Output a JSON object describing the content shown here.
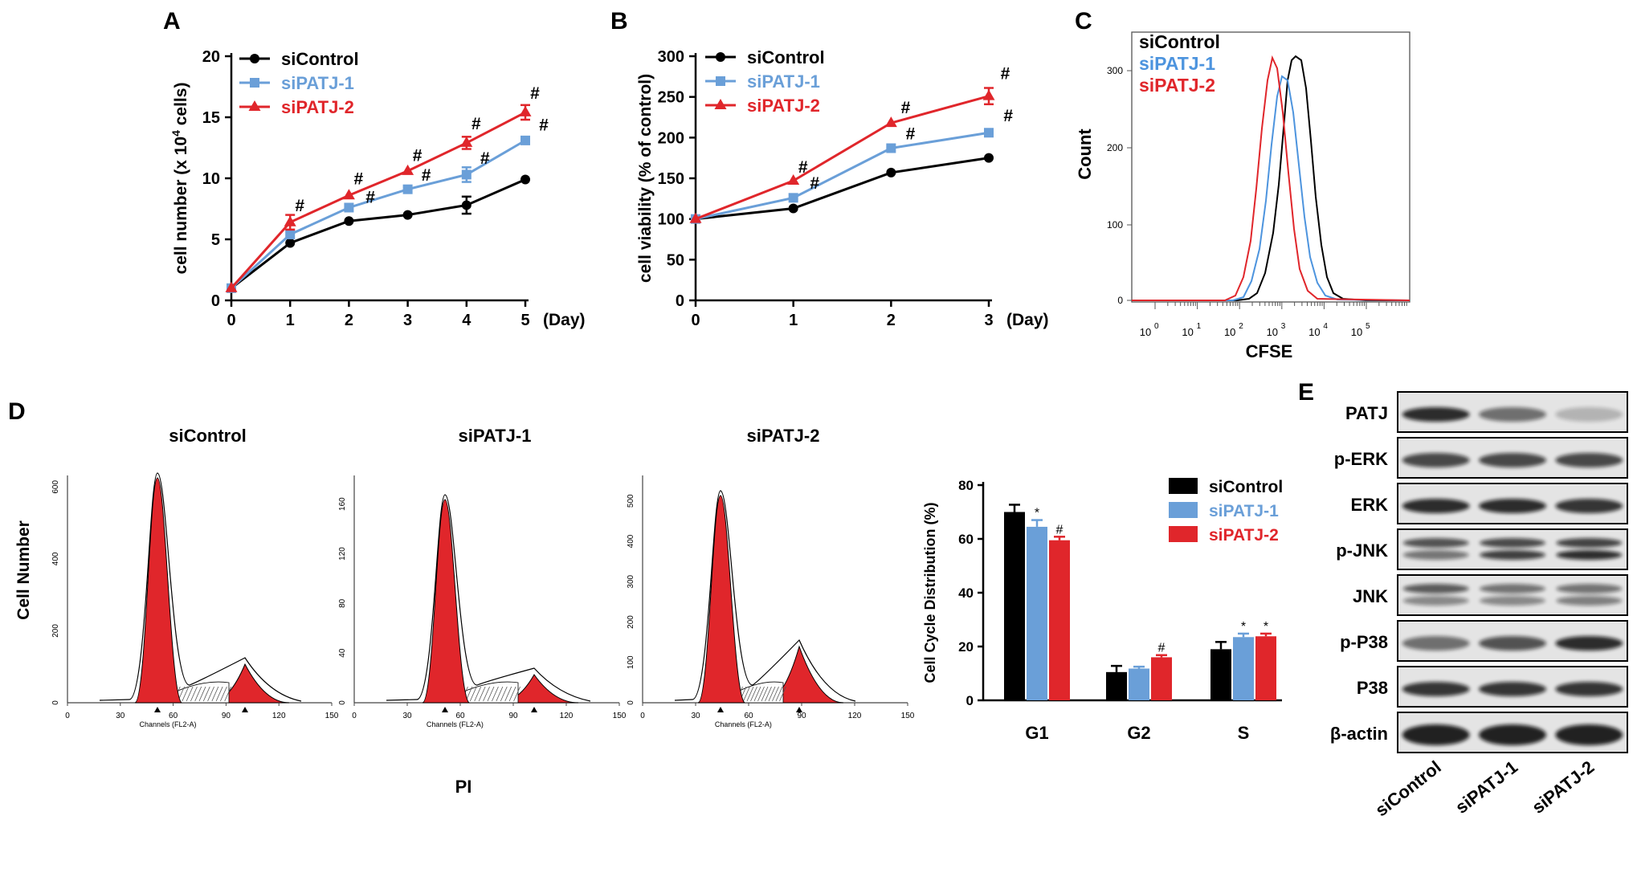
{
  "colors": {
    "siControl": "#000000",
    "siPATJ1": "#6a9fd8",
    "siPATJ2": "#e0262b"
  },
  "panels": {
    "A": "A",
    "B": "B",
    "C": "C",
    "D": "D",
    "E": "E"
  },
  "legend": {
    "s1": "siControl",
    "s2": "siPATJ-1",
    "s3": "siPATJ-2"
  },
  "chart_data": [
    {
      "id": "A",
      "type": "line",
      "ylabel": "cell number (x 10",
      "ylabel_sup": "4",
      "ylabel_end": " cells)",
      "xunit": "(Day)",
      "x": [
        0,
        1,
        2,
        3,
        4,
        5
      ],
      "xticks": [
        "0",
        "1",
        "2",
        "3",
        "4",
        "5"
      ],
      "yticks": [
        "0",
        "5",
        "10",
        "15",
        "20"
      ],
      "ylim": [
        0,
        20
      ],
      "series": [
        {
          "name": "siControl",
          "color": "#000000",
          "marker": "circle",
          "values": [
            1,
            4.7,
            6.5,
            7,
            7.8,
            9.9
          ],
          "err": [
            0,
            0,
            0,
            0,
            0.7,
            0
          ]
        },
        {
          "name": "siPATJ-1",
          "color": "#6a9fd8",
          "marker": "square",
          "values": [
            1,
            5.4,
            7.6,
            9.1,
            10.3,
            13.1
          ],
          "err": [
            0,
            0,
            0,
            0,
            0.6,
            0
          ]
        },
        {
          "name": "siPATJ-2",
          "color": "#e0262b",
          "marker": "triangle",
          "values": [
            1,
            6.4,
            8.6,
            10.6,
            12.9,
            15.4
          ],
          "err": [
            0,
            0.6,
            0,
            0,
            0.5,
            0.6
          ]
        }
      ],
      "annotations": [
        {
          "text": "#",
          "x": 1,
          "y": 7.3
        },
        {
          "text": "#",
          "x": 2,
          "y": 9.5
        },
        {
          "text": "#",
          "x": 2.2,
          "y": 8.0
        },
        {
          "text": "#",
          "x": 3,
          "y": 11.4
        },
        {
          "text": "#",
          "x": 3.15,
          "y": 9.8
        },
        {
          "text": "#",
          "x": 4,
          "y": 14.0
        },
        {
          "text": "#",
          "x": 4.15,
          "y": 11.2
        },
        {
          "text": "#",
          "x": 5,
          "y": 16.5
        },
        {
          "text": "#",
          "x": 5.15,
          "y": 13.9
        }
      ]
    },
    {
      "id": "B",
      "type": "line",
      "ylabel": "cell viability (% of control)",
      "xunit": "(Day)",
      "x": [
        0,
        1,
        2,
        3
      ],
      "xticks": [
        "0",
        "1",
        "2",
        "3"
      ],
      "yticks": [
        "0",
        "50",
        "100",
        "150",
        "200",
        "250",
        "300"
      ],
      "ylim": [
        0,
        300
      ],
      "series": [
        {
          "name": "siControl",
          "color": "#000000",
          "marker": "circle",
          "values": [
            100,
            113,
            157,
            175
          ],
          "err": [
            0,
            0,
            0,
            0
          ]
        },
        {
          "name": "siPATJ-1",
          "color": "#6a9fd8",
          "marker": "square",
          "values": [
            100,
            126,
            187,
            206
          ],
          "err": [
            0,
            0,
            0,
            0
          ]
        },
        {
          "name": "siPATJ-2",
          "color": "#e0262b",
          "marker": "triangle",
          "values": [
            100,
            147,
            218,
            251
          ],
          "err": [
            0,
            0,
            0,
            10
          ]
        }
      ],
      "annotations": [
        {
          "text": "#",
          "x": 1,
          "y": 157
        },
        {
          "text": "#",
          "x": 1.12,
          "y": 137
        },
        {
          "text": "#",
          "x": 2.05,
          "y": 230
        },
        {
          "text": "#",
          "x": 2.1,
          "y": 198
        },
        {
          "text": "#",
          "x": 3.07,
          "y": 272
        },
        {
          "text": "#",
          "x": 3.1,
          "y": 220
        }
      ]
    },
    {
      "id": "C",
      "type": "line",
      "xlabel": "CFSE",
      "ylabel": "Count",
      "xticks": [
        "10",
        "10",
        "10",
        "10",
        "10",
        "10"
      ],
      "xtick_exp": [
        "0",
        "1",
        "2",
        "3",
        "4",
        "5"
      ],
      "yticks": [
        "0",
        "100",
        "200",
        "300"
      ],
      "legend": [
        "siControl",
        "siPATJ-1",
        "siPATJ-2"
      ]
    },
    {
      "id": "D",
      "type": "bar",
      "ylabel": "Cell Cycle Distribution (%)",
      "categories": [
        "G1",
        "G2",
        "S"
      ],
      "yticks": [
        "0",
        "20",
        "40",
        "60",
        "80"
      ],
      "ylim": [
        0,
        80
      ],
      "series": [
        {
          "name": "siControl",
          "color": "#000000",
          "values": [
            70,
            10.5,
            19
          ],
          "err": [
            2.7,
            2.3,
            2.7
          ]
        },
        {
          "name": "siPATJ-1",
          "color": "#6a9fd8",
          "values": [
            64.5,
            11.8,
            23.5
          ],
          "err": [
            2.5,
            0.7,
            1.3
          ]
        },
        {
          "name": "siPATJ-2",
          "color": "#e0262b",
          "values": [
            59.5,
            16,
            23.8
          ],
          "err": [
            1.3,
            0.8,
            1.0
          ]
        }
      ],
      "marks": [
        {
          "cat": 1,
          "series": 1,
          "text": "*"
        },
        {
          "cat": 1,
          "series": 2,
          "text": "#"
        },
        {
          "cat": 2,
          "series": 2,
          "text": "#"
        },
        {
          "cat": 3,
          "series": 1,
          "text": "*"
        },
        {
          "cat": 3,
          "series": 2,
          "text": "*"
        }
      ]
    }
  ],
  "histograms": {
    "xlabel": "Channels (FL2-A)",
    "common_xlabel": "PI",
    "ylabel": "Cell Number",
    "xticks": [
      "0",
      "30",
      "60",
      "90",
      "120",
      "150"
    ],
    "plots": [
      {
        "title": "siControl",
        "yticks": [
          "0",
          "200",
          "400",
          "600"
        ]
      },
      {
        "title": "siPATJ-1",
        "yticks": [
          "0",
          "40",
          "80",
          "120",
          "160"
        ]
      },
      {
        "title": "siPATJ-2",
        "yticks": [
          "0",
          "100",
          "200",
          "300",
          "400",
          "500"
        ]
      }
    ]
  },
  "blot": {
    "rows": [
      "PATJ",
      "p-ERK",
      "ERK",
      "p-JNK",
      "JNK",
      "p-P38",
      "P38",
      "β-actin"
    ],
    "lanes": [
      "siControl",
      "siPATJ-1",
      "siPATJ-2"
    ]
  }
}
